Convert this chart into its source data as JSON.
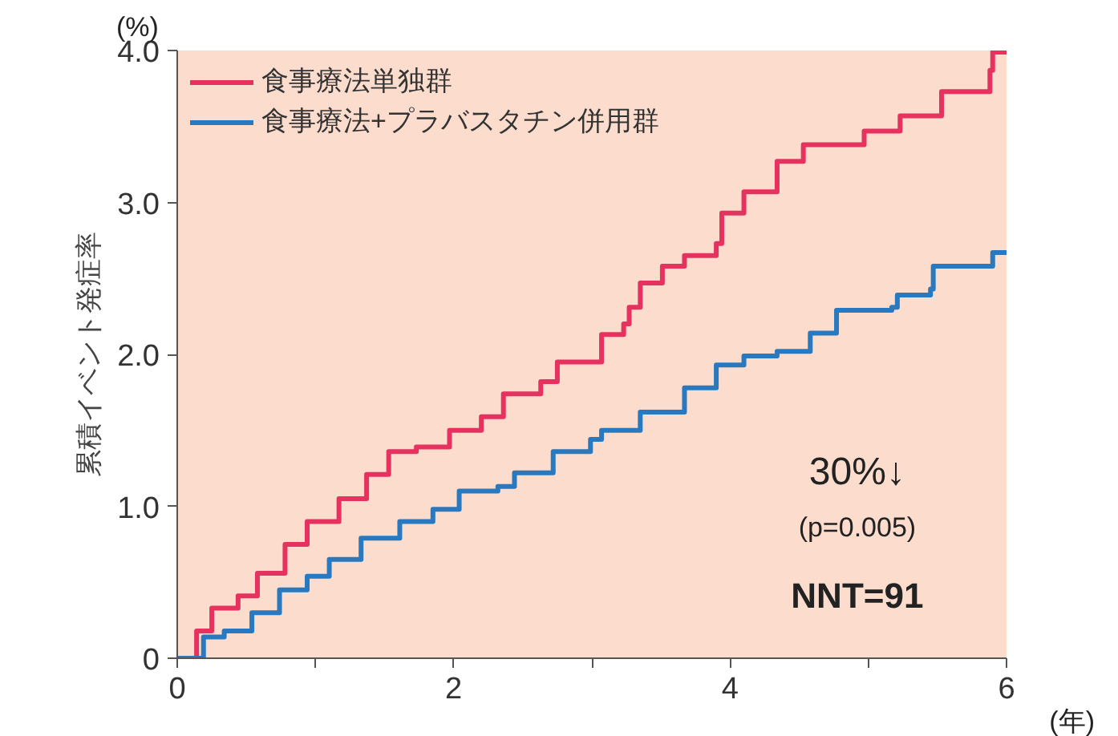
{
  "chart_data": {
    "type": "step",
    "ylabel": "累積イベント発症率",
    "xlim": [
      0,
      6
    ],
    "ylim": [
      0,
      4
    ],
    "xticks": [
      0,
      {
        "value": 1,
        "label": null
      },
      2,
      {
        "value": 3,
        "label": null
      },
      4,
      {
        "value": 5,
        "label": null
      },
      6
    ],
    "yticks": [
      0,
      {
        "value": 1,
        "label": "1.0"
      },
      {
        "value": 2,
        "label": "2.0"
      },
      {
        "value": 3,
        "label": "3.0"
      },
      {
        "value": 4,
        "label": "4.0"
      }
    ],
    "grid": false,
    "legend": "top left",
    "series": [
      {
        "name": "食事療法単独群",
        "color": "#e5325e",
        "x": [
          0,
          0.14,
          0.25,
          0.44,
          0.58,
          0.78,
          0.94,
          1.17,
          1.37,
          1.53,
          1.73,
          1.97,
          2.2,
          2.36,
          2.63,
          2.75,
          3.07,
          3.23,
          3.27,
          3.35,
          3.51,
          3.67,
          3.9,
          3.94,
          4.1,
          4.34,
          4.53,
          4.97,
          5.23,
          5.53,
          5.88,
          5.9,
          6.0
        ],
        "values": [
          0,
          0.18,
          0.33,
          0.41,
          0.56,
          0.75,
          0.9,
          1.05,
          1.21,
          1.36,
          1.39,
          1.5,
          1.59,
          1.74,
          1.82,
          1.95,
          2.13,
          2.2,
          2.31,
          2.47,
          2.58,
          2.65,
          2.73,
          2.93,
          3.07,
          3.27,
          3.38,
          3.47,
          3.57,
          3.73,
          3.87,
          3.99,
          3.99
        ]
      },
      {
        "name": "食事療法+プラバスタチン併用群",
        "color": "#2879c0",
        "x": [
          0,
          0.19,
          0.34,
          0.54,
          0.74,
          0.94,
          1.1,
          1.33,
          1.61,
          1.85,
          2.04,
          2.32,
          2.44,
          2.72,
          2.99,
          3.07,
          3.35,
          3.67,
          3.9,
          4.1,
          4.34,
          4.58,
          4.77,
          5.17,
          5.21,
          5.45,
          5.47,
          5.88,
          5.9,
          6.0
        ],
        "values": [
          0,
          0.14,
          0.18,
          0.3,
          0.45,
          0.54,
          0.65,
          0.79,
          0.9,
          0.98,
          1.1,
          1.13,
          1.22,
          1.36,
          1.44,
          1.5,
          1.62,
          1.78,
          1.93,
          1.99,
          2.02,
          2.14,
          2.29,
          2.31,
          2.39,
          2.43,
          2.58,
          2.58,
          2.67,
          2.67
        ]
      }
    ],
    "annotations": [
      "(%)",
      "(年)",
      "30%↓",
      "(p=0.005)",
      "NNT=91"
    ]
  }
}
